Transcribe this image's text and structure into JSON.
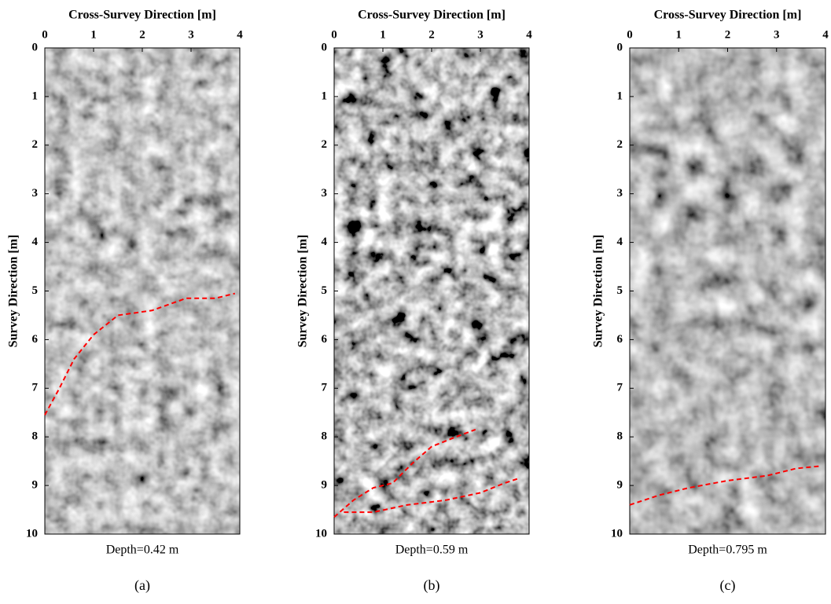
{
  "chart_data": [
    {
      "type": "image",
      "title": "Cross-Survey Direction [m]",
      "ylabel": "Survey Direction [m]",
      "xlabel": "Depth=0.42 m",
      "caption": "(a)",
      "xlim": [
        0,
        4
      ],
      "ylim": [
        0,
        10
      ],
      "xticks": [
        0,
        1,
        2,
        3,
        4
      ],
      "yticks": [
        0,
        1,
        2,
        3,
        4,
        5,
        6,
        7,
        8,
        9,
        10
      ],
      "series": [
        {
          "color": "#ff0000",
          "x": [
            0,
            0.3,
            0.6,
            1.0,
            1.5,
            2.2,
            2.9,
            3.5,
            3.9
          ],
          "values": [
            7.55,
            7.0,
            6.4,
            5.9,
            5.5,
            5.4,
            5.15,
            5.15,
            5.05
          ]
        }
      ]
    },
    {
      "type": "image",
      "title": "Cross-Survey Direction [m]",
      "ylabel": "Survey Direction [m]",
      "xlabel": "Depth=0.59 m",
      "caption": "(b)",
      "xlim": [
        0,
        4
      ],
      "ylim": [
        0,
        10
      ],
      "xticks": [
        0,
        1,
        2,
        3,
        4
      ],
      "yticks": [
        0,
        1,
        2,
        3,
        4,
        5,
        6,
        7,
        8,
        9,
        10
      ],
      "series": [
        {
          "color": "#ff0000",
          "x": [
            0,
            0.4,
            0.8,
            1.2,
            1.6,
            2.0,
            2.5,
            2.9
          ],
          "values": [
            9.65,
            9.3,
            9.05,
            8.95,
            8.55,
            8.2,
            8.0,
            7.85
          ]
        },
        {
          "color": "#ff0000",
          "x": [
            0.2,
            0.8,
            1.5,
            2.3,
            3.0,
            3.5,
            3.8
          ],
          "values": [
            9.55,
            9.55,
            9.4,
            9.3,
            9.15,
            8.95,
            8.85
          ]
        }
      ]
    },
    {
      "type": "image",
      "title": "Cross-Survey Direction [m]",
      "ylabel": "Survey Direction [m]",
      "xlabel": "Depth=0.795 m",
      "caption": "(c)",
      "xlim": [
        0,
        4
      ],
      "ylim": [
        0,
        10
      ],
      "xticks": [
        0,
        1,
        2,
        3,
        4
      ],
      "yticks": [
        0,
        1,
        2,
        3,
        4,
        5,
        6,
        7,
        8,
        9,
        10
      ],
      "series": [
        {
          "color": "#ff0000",
          "x": [
            0,
            0.6,
            1.2,
            2.0,
            2.8,
            3.4,
            3.9
          ],
          "values": [
            9.4,
            9.2,
            9.05,
            8.9,
            8.8,
            8.65,
            8.6
          ]
        }
      ]
    }
  ]
}
